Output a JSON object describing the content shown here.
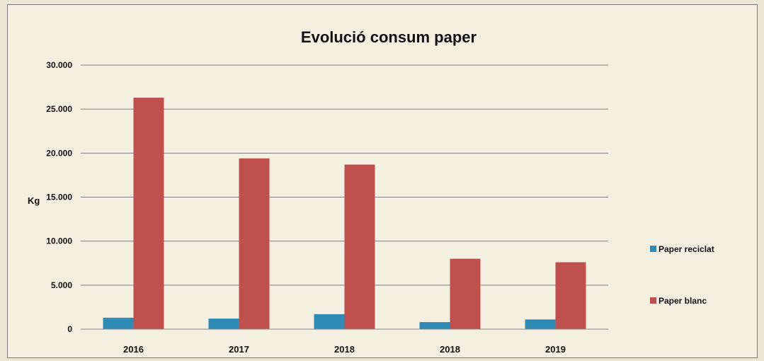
{
  "chart_data": {
    "type": "bar",
    "title": "Evolució consum paper",
    "ylabel": "Kg",
    "xlabel": "",
    "categories": [
      "2016",
      "2017",
      "2018",
      "2018",
      "2019"
    ],
    "series": [
      {
        "name": "Paper reciclat",
        "color": "#2f8ab5",
        "values": [
          1300,
          1200,
          1700,
          800,
          1100
        ]
      },
      {
        "name": "Paper blanc",
        "color": "#c0504d",
        "values": [
          26300,
          19400,
          18700,
          8000,
          7600
        ]
      }
    ],
    "ylim": [
      0,
      30000
    ],
    "yticks": [
      0,
      5000,
      10000,
      15000,
      20000,
      25000,
      30000
    ],
    "ytick_labels": [
      "0",
      "5.000",
      "10.000",
      "15.000",
      "20.000",
      "25.000",
      "30.000"
    ],
    "grid": true,
    "legend_position": "right"
  }
}
